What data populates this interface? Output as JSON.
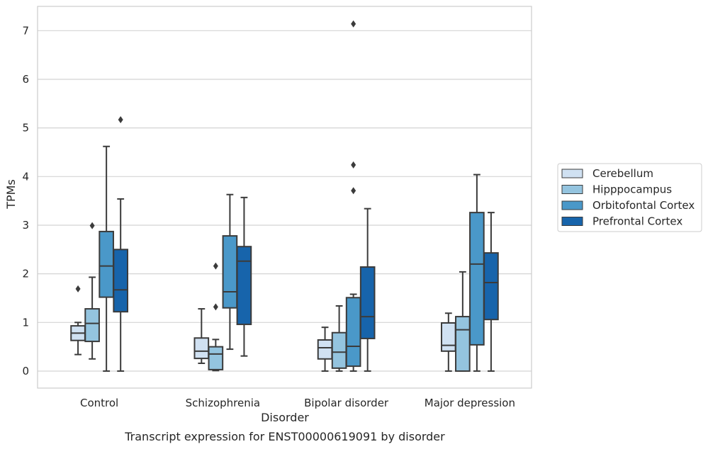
{
  "caption": "Transcript expression for ENST00000619091 by disorder",
  "chart_data": {
    "type": "box",
    "title": "",
    "xlabel": "Disorder",
    "ylabel": "TPMs",
    "categories": [
      "Control",
      "Schizophrenia",
      "Bipolar disorder",
      "Major depression"
    ],
    "ylim": [
      -0.35,
      7.5
    ],
    "yticks": [
      "0",
      "1",
      "2",
      "3",
      "4",
      "5",
      "6",
      "7"
    ],
    "grid": "horizontal",
    "legend_position": "right",
    "series": [
      {
        "name": "Cerebellum",
        "color": "#d0e1f2",
        "boxes": [
          {
            "whisker_low": 0.34,
            "q1": 0.63,
            "median": 0.78,
            "q3": 0.93,
            "whisker_high": 1.0,
            "outliers": [
              1.69
            ]
          },
          {
            "whisker_low": 0.16,
            "q1": 0.26,
            "median": 0.41,
            "q3": 0.68,
            "whisker_high": 1.28,
            "outliers": []
          },
          {
            "whisker_low": 0.0,
            "q1": 0.25,
            "median": 0.48,
            "q3": 0.64,
            "whisker_high": 0.9,
            "outliers": []
          },
          {
            "whisker_low": 0.0,
            "q1": 0.41,
            "median": 0.53,
            "q3": 0.99,
            "whisker_high": 1.19,
            "outliers": []
          }
        ]
      },
      {
        "name": "Hipppocampus",
        "color": "#94c4df",
        "boxes": [
          {
            "whisker_low": 0.25,
            "q1": 0.61,
            "median": 0.98,
            "q3": 1.28,
            "whisker_high": 1.93,
            "outliers": [
              2.99
            ]
          },
          {
            "whisker_low": 0.01,
            "q1": 0.03,
            "median": 0.35,
            "q3": 0.5,
            "whisker_high": 0.65,
            "outliers": [
              1.32,
              2.16
            ]
          },
          {
            "whisker_low": 0.0,
            "q1": 0.06,
            "median": 0.39,
            "q3": 0.79,
            "whisker_high": 1.34,
            "outliers": []
          },
          {
            "whisker_low": 0.0,
            "q1": 0.0,
            "median": 0.85,
            "q3": 1.12,
            "whisker_high": 2.04,
            "outliers": []
          }
        ]
      },
      {
        "name": "Orbitofontal Cortex",
        "color": "#4a98c9",
        "boxes": [
          {
            "whisker_low": 0.0,
            "q1": 1.52,
            "median": 2.16,
            "q3": 2.87,
            "whisker_high": 4.62,
            "outliers": []
          },
          {
            "whisker_low": 0.45,
            "q1": 1.3,
            "median": 1.63,
            "q3": 2.78,
            "whisker_high": 3.63,
            "outliers": []
          },
          {
            "whisker_low": 0.0,
            "q1": 0.1,
            "median": 0.51,
            "q3": 1.51,
            "whisker_high": 1.58,
            "outliers": [
              3.71,
              4.24,
              7.14
            ]
          },
          {
            "whisker_low": 0.0,
            "q1": 0.54,
            "median": 2.2,
            "q3": 3.26,
            "whisker_high": 4.04,
            "outliers": []
          }
        ]
      },
      {
        "name": "Prefrontal Cortex",
        "color": "#1764ab",
        "boxes": [
          {
            "whisker_low": 0.0,
            "q1": 1.22,
            "median": 1.67,
            "q3": 2.5,
            "whisker_high": 3.54,
            "outliers": [
              5.17
            ]
          },
          {
            "whisker_low": 0.31,
            "q1": 0.96,
            "median": 2.26,
            "q3": 2.56,
            "whisker_high": 3.57,
            "outliers": []
          },
          {
            "whisker_low": 0.0,
            "q1": 0.67,
            "median": 1.12,
            "q3": 2.14,
            "whisker_high": 3.34,
            "outliers": []
          },
          {
            "whisker_low": 0.0,
            "q1": 1.06,
            "median": 1.82,
            "q3": 2.43,
            "whisker_high": 3.26,
            "outliers": []
          }
        ]
      }
    ]
  }
}
